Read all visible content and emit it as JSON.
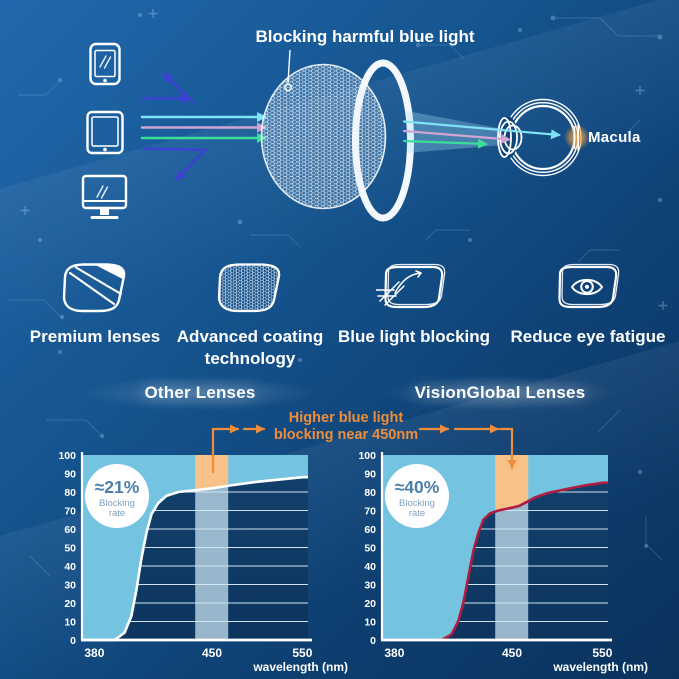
{
  "background": {
    "top_color": "#2169ac",
    "bottom_color": "#0a325c"
  },
  "hero": {
    "blocking_label": "Blocking harmful blue light",
    "macula_label": "Macula",
    "device_icons": [
      "smartphone-icon",
      "tablet-icon",
      "monitor-icon"
    ],
    "ray_colors": {
      "blue": "#3c41d3",
      "cyan": "#7fe2f6",
      "pink": "#d2a4d1",
      "green": "#3cdc99"
    }
  },
  "features": [
    {
      "icon": "striped-lens-icon",
      "label": "Premium lenses"
    },
    {
      "icon": "honeycomb-lens-icon",
      "label": "Advanced coating technology"
    },
    {
      "icon": "ray-blocking-lens-icon",
      "label": "Blue light blocking"
    },
    {
      "icon": "eye-in-lens-icon",
      "label": "Reduce eye fatigue"
    }
  ],
  "comparison": {
    "annotation_line1": "Higher blue light",
    "annotation_line2": "blocking near 450nm",
    "accent_color": "#ef8e3a"
  },
  "chart_data": [
    {
      "type": "area",
      "title": "Other Lenses",
      "xlabel": "wavelength (nm)",
      "xlim": [
        380,
        550
      ],
      "ylim": [
        0,
        100
      ],
      "x_ticks": [
        380,
        450,
        550
      ],
      "y_ticks": [
        0,
        10,
        20,
        30,
        40,
        50,
        60,
        70,
        80,
        90,
        100
      ],
      "gridlines": [
        10,
        20,
        30,
        40,
        50,
        60,
        70,
        80
      ],
      "badge": {
        "value": "≈21%",
        "caption_line1": "Blocking",
        "caption_line2": "rate"
      },
      "highlight_band_nm": {
        "from": 440,
        "to": 468
      },
      "curve_series": "blocking rate (%)",
      "curve": [
        [
          380,
          0
        ],
        [
          392,
          0
        ],
        [
          398,
          4
        ],
        [
          402,
          13
        ],
        [
          405,
          27
        ],
        [
          408,
          44
        ],
        [
          411,
          58
        ],
        [
          414,
          68
        ],
        [
          418,
          74
        ],
        [
          423,
          78
        ],
        [
          430,
          80
        ],
        [
          440,
          81
        ],
        [
          450,
          82
        ],
        [
          470,
          83.5
        ],
        [
          500,
          85.5
        ],
        [
          530,
          87
        ],
        [
          550,
          88
        ]
      ],
      "curve_color": "#ffffff",
      "fill_color": "#74c4e1",
      "band_color": "#cfe7f5",
      "highlight_color": "#f8c187"
    },
    {
      "type": "area",
      "title": "VisionGlobal Lenses",
      "xlabel": "wavelength (nm)",
      "xlim": [
        380,
        550
      ],
      "ylim": [
        0,
        100
      ],
      "x_ticks": [
        380,
        450,
        550
      ],
      "y_ticks": [
        0,
        10,
        20,
        30,
        40,
        50,
        60,
        70,
        80,
        90,
        100
      ],
      "gridlines": [
        10,
        20,
        30,
        40,
        50,
        60,
        70,
        80
      ],
      "badge": {
        "value": "≈40%",
        "caption_line1": "Blocking",
        "caption_line2": "rate"
      },
      "highlight_band_nm": {
        "from": 440,
        "to": 468
      },
      "curve_series": "blocking rate (%)",
      "curve": [
        [
          380,
          0
        ],
        [
          408,
          0
        ],
        [
          414,
          3
        ],
        [
          418,
          10
        ],
        [
          421,
          20
        ],
        [
          424,
          34
        ],
        [
          427,
          48
        ],
        [
          430,
          58
        ],
        [
          433,
          65
        ],
        [
          437,
          68.5
        ],
        [
          442,
          70
        ],
        [
          450,
          71.5
        ],
        [
          458,
          72.5
        ],
        [
          466,
          74.5
        ],
        [
          475,
          77
        ],
        [
          490,
          79.5
        ],
        [
          510,
          81.5
        ],
        [
          530,
          83.5
        ],
        [
          550,
          85
        ]
      ],
      "curve_color": "#b01c41",
      "fill_color": "#74c4e1",
      "band_color": "#cfe7f5",
      "highlight_color": "#f8c187"
    }
  ]
}
